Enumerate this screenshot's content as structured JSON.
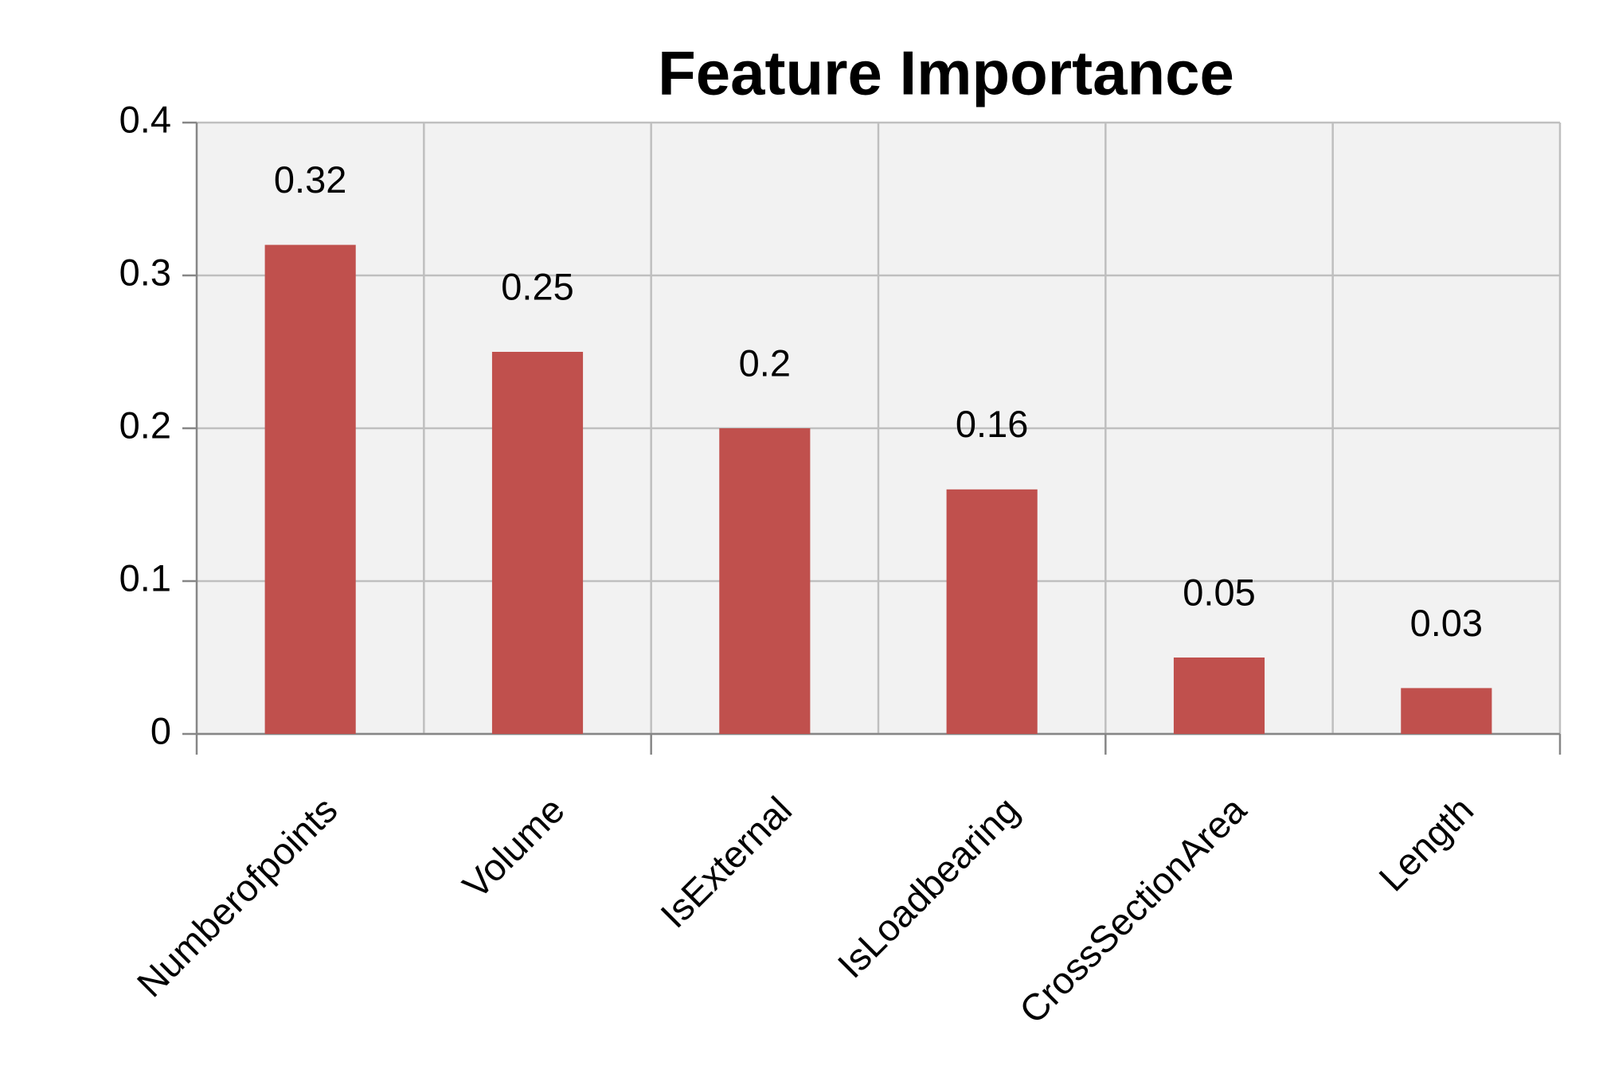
{
  "chart_data": {
    "type": "bar",
    "title": "Feature Importance",
    "categories": [
      "Numberofpoints",
      "Volume",
      "IsExternal",
      "IsLoadbearing",
      "CrossSectionArea",
      "Length"
    ],
    "values": [
      0.32,
      0.25,
      0.2,
      0.16,
      0.05,
      0.03
    ],
    "color": "#c0504d",
    "ylim": [
      0,
      0.4
    ],
    "yticks": [
      0,
      0.1,
      0.2,
      0.3,
      0.4
    ],
    "grid": true
  }
}
